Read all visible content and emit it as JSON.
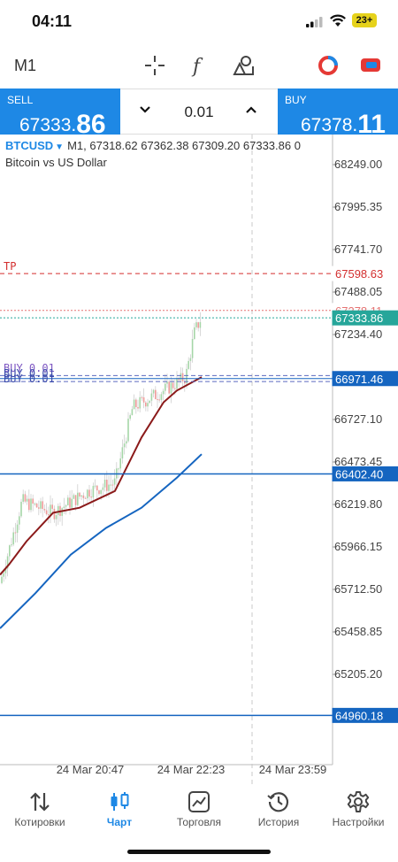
{
  "status": {
    "time": "04:11",
    "battery": "23+"
  },
  "toolbar": {
    "timeframe": "M1",
    "tools": [
      "crosshair-icon",
      "function-icon",
      "objects-icon",
      "account-icon",
      "chat-icon"
    ]
  },
  "trade": {
    "sell_label": "SELL",
    "sell_main": "67333.",
    "sell_big": "86",
    "buy_label": "BUY",
    "buy_main": "67378.",
    "buy_big": "11",
    "lot": "0.01"
  },
  "chart": {
    "symbol": "BTCUSD",
    "timeframe": "M1,",
    "ohlc": "67318.62 67362.38 67309.20 67333.86 0",
    "description": "Bitcoin vs US Dollar",
    "price_ticks": [
      "68249.00",
      "67995.35",
      "67741.70",
      "67488.05",
      "67234.40",
      "66727.10",
      "66473.45",
      "66219.80",
      "65966.15",
      "65712.50",
      "65458.85",
      "65205.20"
    ],
    "time_ticks": [
      "24 Mar 20:47",
      "24 Mar 22:23",
      "24 Mar 23:59"
    ],
    "tp_label": "TP",
    "tp_price": "67598.63",
    "ask_price": "67378.11",
    "bid_price": "67333.86",
    "buy_labels": [
      "BUY 0.01",
      "BUY 0.01",
      "BUY 0.01"
    ],
    "position_price": "66971.46",
    "hline_1": "66402.40",
    "hline_2": "64960.18",
    "colors": {
      "accent": "#1e88e5",
      "tp": "#d32f2f",
      "bid": "#26a69a",
      "ma_slow": "#1565c0",
      "ma_fast": "#8b1a1a"
    }
  },
  "nav": {
    "items": [
      {
        "label": "Котировки",
        "icon": "quotes-arrows-icon",
        "active": false
      },
      {
        "label": "Чарт",
        "icon": "candlestick-icon",
        "active": true
      },
      {
        "label": "Торговля",
        "icon": "trade-chart-icon",
        "active": false
      },
      {
        "label": "История",
        "icon": "history-clock-icon",
        "active": false
      },
      {
        "label": "Настройки",
        "icon": "settings-gear-icon",
        "active": false
      }
    ]
  }
}
